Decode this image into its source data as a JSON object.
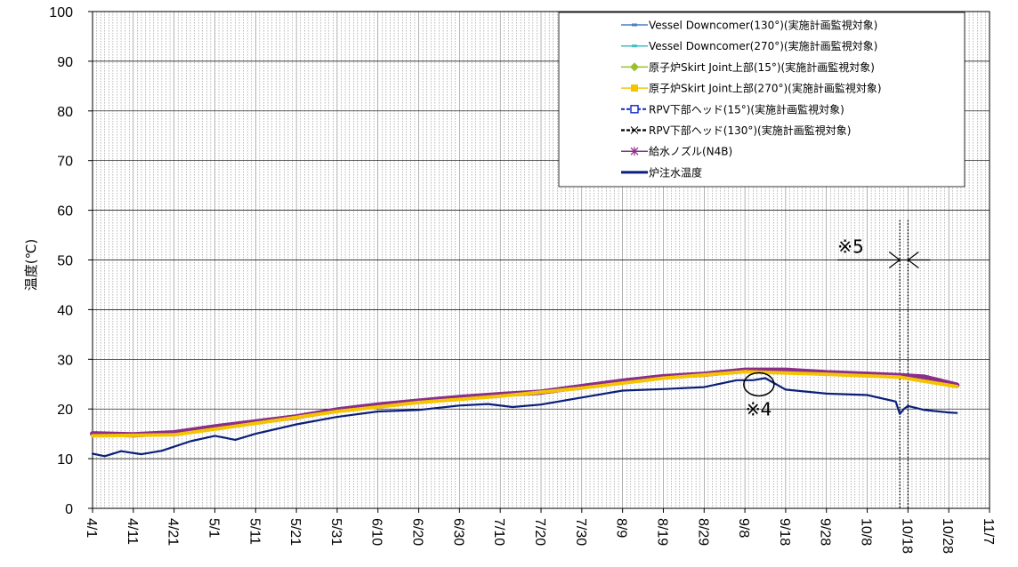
{
  "chart_data": {
    "type": "line",
    "ylabel": "温度(℃)",
    "ylim": [
      0,
      100
    ],
    "yticks": [
      0,
      10,
      20,
      30,
      40,
      50,
      60,
      70,
      80,
      90,
      100
    ],
    "xlim": [
      "2013-04-01",
      "2013-11-07"
    ],
    "xtick_labels": [
      "4/1",
      "4/11",
      "4/21",
      "5/1",
      "5/11",
      "5/21",
      "5/31",
      "6/10",
      "6/20",
      "6/30",
      "7/10",
      "7/20",
      "7/30",
      "8/9",
      "8/19",
      "8/29",
      "9/8",
      "9/18",
      "9/28",
      "10/8",
      "10/18",
      "10/28",
      "11/7"
    ],
    "grid": "vertical daily lines, horizontal at y ticks",
    "legend_position": "top-right",
    "legend": [
      {
        "label": "Vessel Downcomer(130°)(実施計画監視対象)",
        "color": "#4a7fc1",
        "marker": "dash"
      },
      {
        "label": "Vessel Downcomer(270°)(実施計画監視対象)",
        "color": "#3fbfbf",
        "marker": "dash"
      },
      {
        "label": "原子炉Skirt Joint上部(15°)(実施計画監視対象)",
        "color": "#99c02a",
        "marker": "diamond"
      },
      {
        "label": "原子炉Skirt Joint上部(270°)(実施計画監視対象)",
        "color": "#f5c400",
        "marker": "square"
      },
      {
        "label": "RPV下部ヘッド(15°)(実施計画監視対象)",
        "color": "#1f35c7",
        "marker": "open-square",
        "dashed": true
      },
      {
        "label": "RPV下部ヘッド(130°)(実施計画監視対象)",
        "color": "#000000",
        "marker": "x",
        "dashed": true
      },
      {
        "label": "給水ノズル(N4B)",
        "color": "#8b2d8b",
        "marker": "asterisk"
      },
      {
        "label": "炉注水温度",
        "color": "#0b1f7a",
        "marker": "none"
      }
    ],
    "series": [
      {
        "name": "給水ノズル(N4B)",
        "color": "#8b2d8b",
        "x": [
          "2013-04-01",
          "2013-04-11",
          "2013-04-21",
          "2013-05-01",
          "2013-05-11",
          "2013-05-21",
          "2013-05-31",
          "2013-06-10",
          "2013-06-20",
          "2013-06-30",
          "2013-07-10",
          "2013-07-20",
          "2013-07-30",
          "2013-08-09",
          "2013-08-19",
          "2013-08-29",
          "2013-09-08",
          "2013-09-18",
          "2013-09-28",
          "2013-10-08",
          "2013-10-16",
          "2013-10-22",
          "2013-10-30"
        ],
        "y": [
          15.0,
          14.8,
          15.2,
          16.4,
          17.4,
          18.4,
          19.8,
          20.8,
          21.6,
          22.3,
          22.9,
          23.4,
          24.5,
          25.6,
          26.5,
          27.0,
          27.8,
          27.8,
          27.3,
          27.0,
          26.7,
          26.4,
          24.8
        ]
      },
      {
        "name": "原子炉Skirt Joint上部(270°)(実施計画監視対象)",
        "color": "#f5c400",
        "x": [
          "2013-04-01",
          "2013-04-21",
          "2013-05-11",
          "2013-05-31",
          "2013-06-20",
          "2013-07-10",
          "2013-07-30",
          "2013-08-19",
          "2013-09-08",
          "2013-09-28",
          "2013-10-16",
          "2013-10-30"
        ],
        "y": [
          14.6,
          14.8,
          17.1,
          19.5,
          21.3,
          22.6,
          24.2,
          26.2,
          27.5,
          27.0,
          26.4,
          24.5
        ]
      },
      {
        "name": "炉注水温度",
        "color": "#0b1f7a",
        "x": [
          "2013-04-01",
          "2013-04-04",
          "2013-04-08",
          "2013-04-13",
          "2013-04-18",
          "2013-04-25",
          "2013-05-01",
          "2013-05-06",
          "2013-05-11",
          "2013-05-21",
          "2013-05-31",
          "2013-06-10",
          "2013-06-20",
          "2013-06-30",
          "2013-07-07",
          "2013-07-13",
          "2013-07-20",
          "2013-07-30",
          "2013-08-09",
          "2013-08-19",
          "2013-08-29",
          "2013-09-06",
          "2013-09-10",
          "2013-09-13",
          "2013-09-18",
          "2013-09-28",
          "2013-10-08",
          "2013-10-15",
          "2013-10-16",
          "2013-10-17",
          "2013-10-18",
          "2013-10-22",
          "2013-10-28",
          "2013-10-30"
        ],
        "y": [
          11.0,
          10.5,
          11.5,
          10.9,
          11.6,
          13.5,
          14.6,
          13.8,
          15.0,
          16.9,
          18.4,
          19.5,
          19.8,
          20.7,
          21.0,
          20.4,
          20.9,
          22.3,
          23.7,
          24.0,
          24.4,
          25.8,
          25.8,
          26.2,
          23.9,
          23.1,
          22.8,
          21.5,
          19.0,
          20.0,
          20.6,
          19.8,
          19.3,
          19.2
        ]
      }
    ],
    "annotations": [
      {
        "text": "※4",
        "x": "2013-09-11",
        "y": 25.5,
        "shape": "circle"
      },
      {
        "text": "※5",
        "x": "2013-10-16",
        "y": 50,
        "shape": "interval-marker"
      }
    ],
    "dotted_vlines": [
      "2013-10-16",
      "2013-10-18"
    ]
  }
}
